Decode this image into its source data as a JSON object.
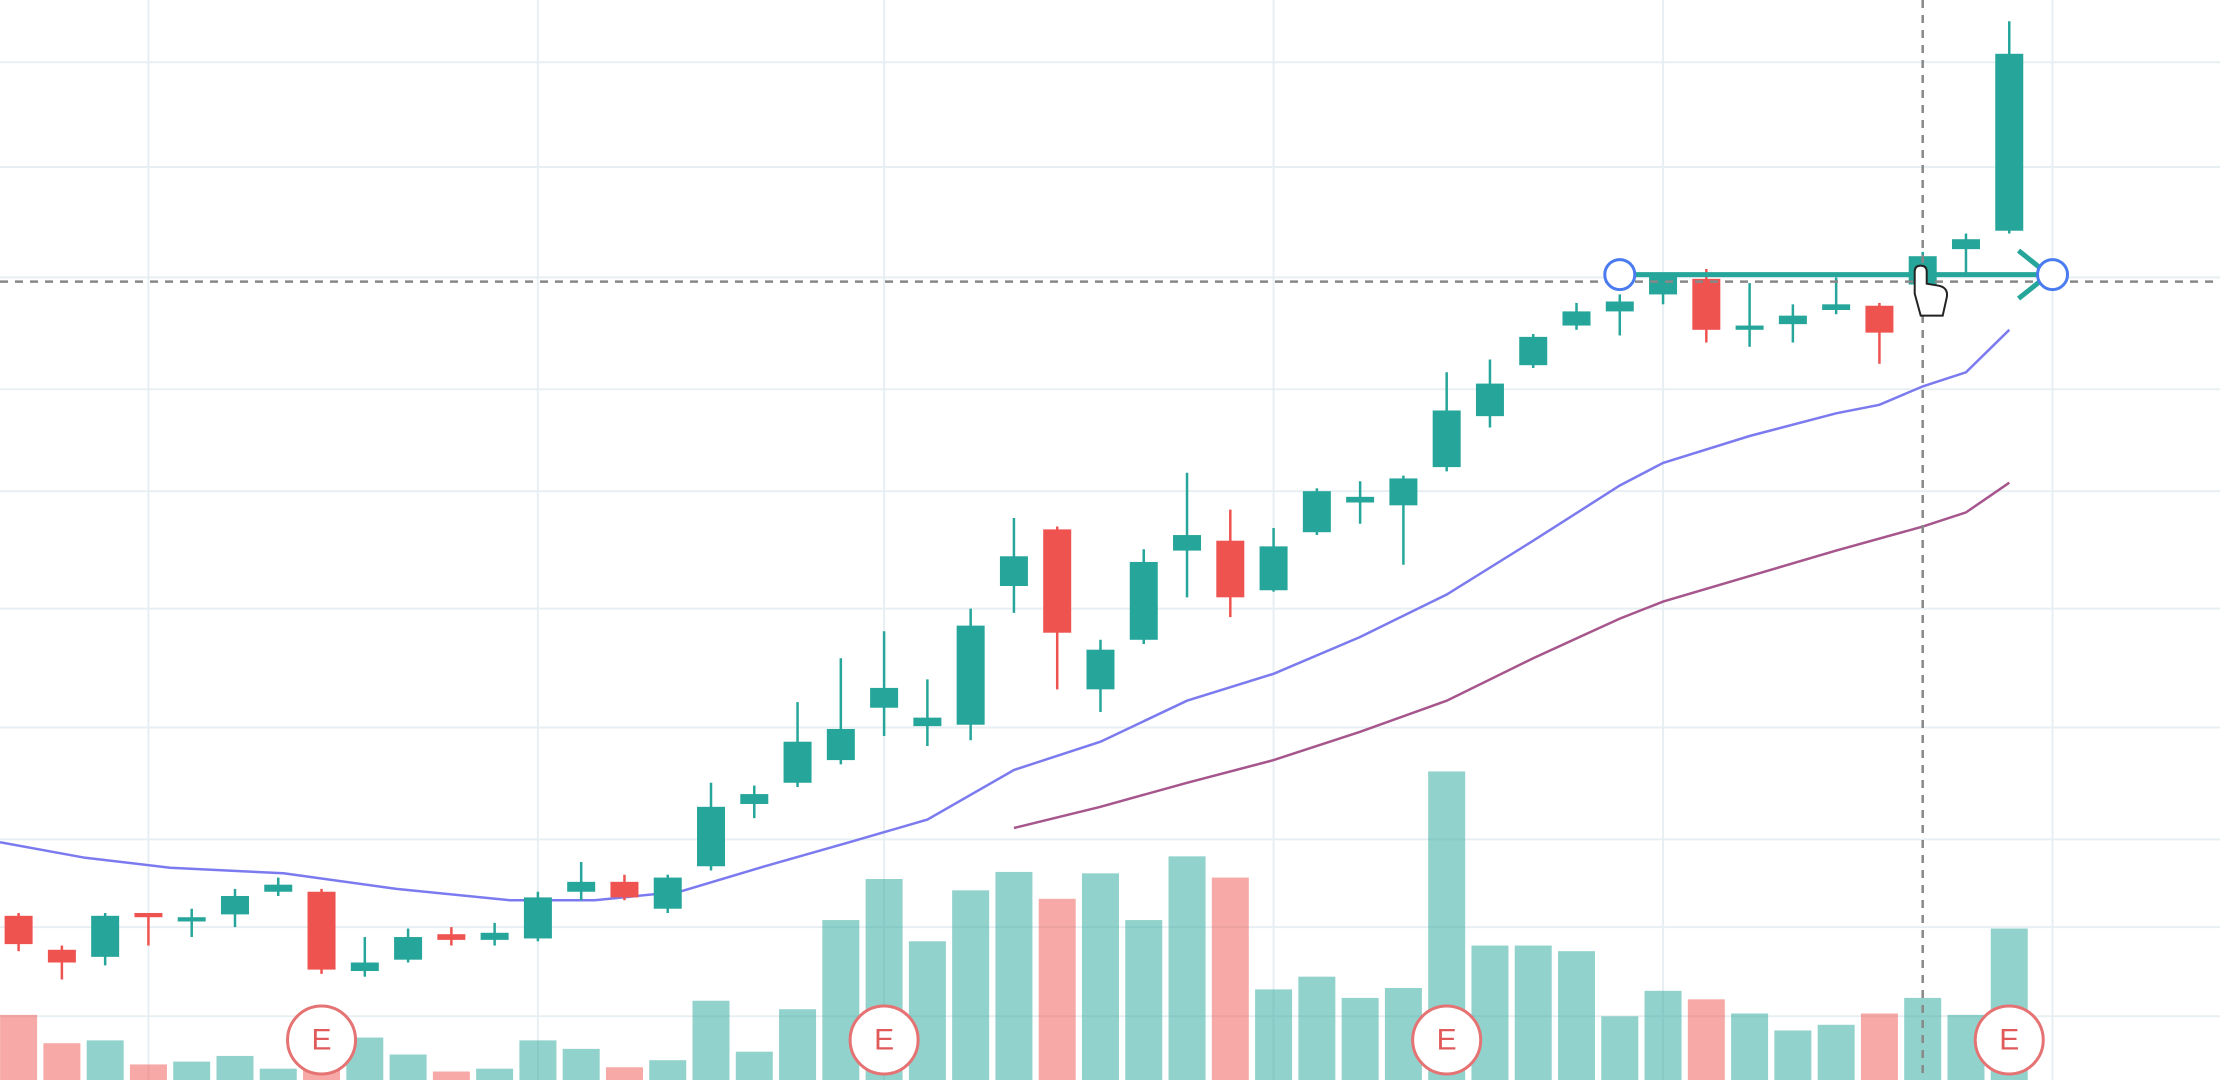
{
  "chart_data": {
    "type": "candlestick",
    "xlim": [
      -0.43,
      50.87
    ],
    "ylim": [
      0,
      763
    ],
    "xticks": [
      3,
      12,
      20,
      29,
      38,
      47
    ],
    "yticks": [
      45,
      108,
      170,
      249,
      333,
      416,
      488,
      567,
      645,
      719
    ],
    "grid": true,
    "up_color": "#26a69a",
    "down_color": "#ef5350",
    "open": [
      116,
      92,
      87,
      118,
      112,
      117,
      133,
      133,
      77,
      85,
      103,
      99,
      100,
      133,
      140,
      121,
      151,
      195,
      210,
      226,
      263,
      250,
      251,
      349,
      389,
      276,
      311,
      374,
      381,
      346,
      387,
      408,
      406,
      433,
      469,
      505,
      533,
      543,
      555,
      566,
      530,
      534,
      544,
      547,
      562,
      587,
      600
    ],
    "high": [
      118,
      95,
      118,
      118,
      121,
      135,
      143,
      135,
      101,
      107,
      108,
      111,
      133,
      154,
      145,
      145,
      210,
      208,
      267,
      298,
      317,
      283,
      333,
      397,
      391,
      311,
      375,
      429,
      403,
      390,
      418,
      423,
      427,
      500,
      509,
      527,
      549,
      555,
      570,
      573,
      563,
      548,
      567,
      549,
      585,
      598,
      748
    ],
    "low": [
      91,
      71,
      81,
      95,
      101,
      108,
      130,
      75,
      73,
      83,
      95,
      95,
      98,
      127,
      127,
      118,
      148,
      185,
      207,
      223,
      243,
      236,
      240,
      330,
      276,
      260,
      308,
      341,
      327,
      345,
      385,
      393,
      364,
      430,
      461,
      503,
      530,
      526,
      548,
      521,
      518,
      521,
      541,
      506,
      560,
      570,
      598
    ],
    "close": [
      96,
      83,
      116,
      115,
      115,
      130,
      138,
      78,
      83,
      101,
      99,
      104,
      129,
      140,
      129,
      143,
      193,
      202,
      239,
      248,
      277,
      256,
      321,
      370,
      316,
      304,
      366,
      385,
      341,
      377,
      416,
      412,
      425,
      473,
      492,
      525,
      543,
      550,
      568,
      530,
      533,
      540,
      548,
      528,
      582,
      594,
      725
    ],
    "volume": [
      46,
      26,
      28,
      11,
      13,
      17,
      8,
      18,
      30,
      18,
      6,
      8,
      28,
      22,
      9,
      14,
      56,
      20,
      50,
      113,
      142,
      98,
      134,
      147,
      128,
      146,
      113,
      158,
      143,
      64,
      73,
      58,
      65,
      218,
      95,
      95,
      91,
      45,
      63,
      57,
      47,
      35,
      39,
      47,
      58,
      46,
      107
    ],
    "series": [
      {
        "color": "#7b7bef",
        "x": [
          -0.43,
          1.54,
          3.5,
          6.12,
          8.73,
          11.35,
          13.31,
          15.28,
          17.24,
          19.2,
          21,
          23,
          25,
          27,
          29,
          31,
          33,
          35,
          37,
          38,
          40,
          42,
          43,
          44,
          45,
          46
        ],
        "values": [
          168,
          157,
          150,
          146,
          135,
          127,
          127,
          133,
          151,
          168,
          184,
          219,
          239,
          268,
          287,
          313,
          343,
          381,
          420,
          436,
          455,
          471,
          477,
          490,
          500,
          530
        ]
      },
      {
        "color": "#a6568c",
        "x": [
          23,
          25,
          27,
          29,
          31,
          33,
          35,
          37,
          38,
          40,
          42,
          44,
          45,
          46
        ],
        "values": [
          178,
          193,
          210,
          226,
          246,
          268,
          298,
          326,
          338,
          356,
          374,
          391,
          401,
          422
        ]
      }
    ],
    "events": [
      {
        "label": "E",
        "x": 7
      },
      {
        "label": "E",
        "x": 20
      },
      {
        "label": "E",
        "x": 33
      },
      {
        "label": "E",
        "x": 46
      }
    ],
    "crosshair": {
      "x": 44,
      "y": 564
    },
    "trend_line": {
      "x": [
        37,
        47
      ],
      "y": [
        569,
        569
      ],
      "color": "#26a69a"
    }
  }
}
